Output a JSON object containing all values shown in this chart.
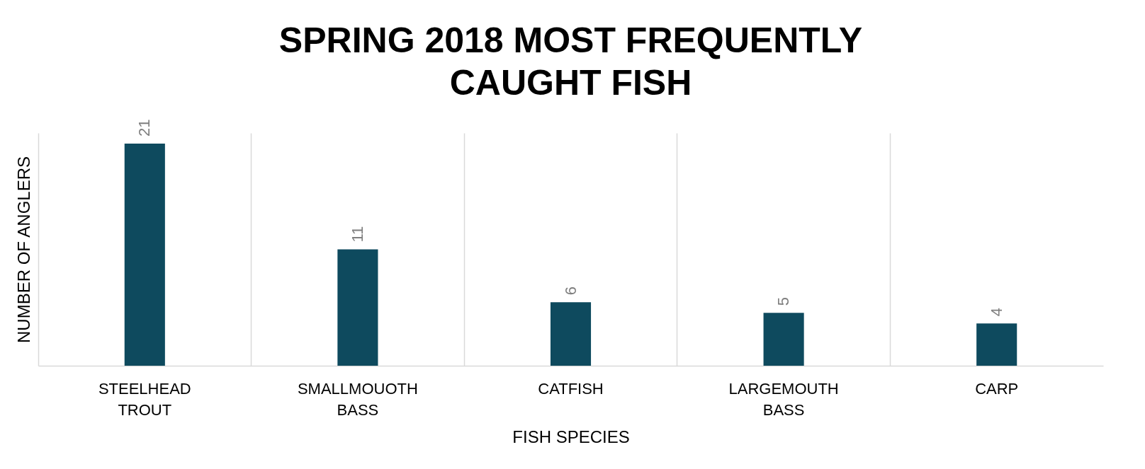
{
  "chart_data": {
    "type": "bar",
    "title": "SPRING 2018 MOST FREQUENTLY CAUGHT FISH",
    "xlabel": "FISH SPECIES",
    "ylabel": "NUMBER OF ANGLERS",
    "categories": [
      "STEELHEAD TROUT",
      "SMALLMOUOTH BASS",
      "CATFISH",
      "LARGEMOUTH BASS",
      "CARP"
    ],
    "values": [
      21,
      11,
      6,
      5,
      4
    ],
    "color": "#0e4a5e",
    "data_labels": true,
    "grid": "x"
  }
}
